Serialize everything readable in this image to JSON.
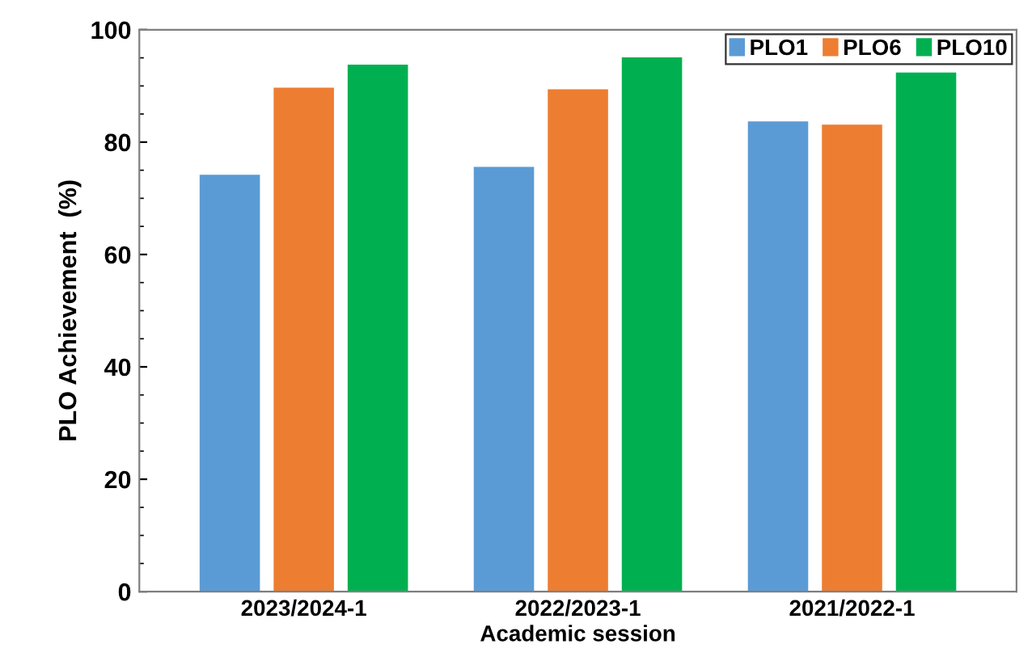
{
  "chart_data": {
    "type": "bar",
    "xlabel": "Academic session",
    "ylabel": "PLO Achievement  (%)",
    "categories": [
      "2023/2024-1",
      "2022/2023-1",
      "2021/2022-1"
    ],
    "series": [
      {
        "name": "PLO1",
        "color": "#5b9bd5",
        "values": [
          74.2,
          75.6,
          83.7
        ]
      },
      {
        "name": "PLO6",
        "color": "#ed7d31",
        "values": [
          89.7,
          89.4,
          83.1
        ]
      },
      {
        "name": "PLO10",
        "color": "#00b050",
        "values": [
          93.8,
          95.1,
          92.4
        ]
      }
    ],
    "ylim": [
      0,
      100
    ],
    "yticks": [
      0,
      20,
      40,
      60,
      80,
      100
    ],
    "grid": false,
    "legend": "top right"
  }
}
